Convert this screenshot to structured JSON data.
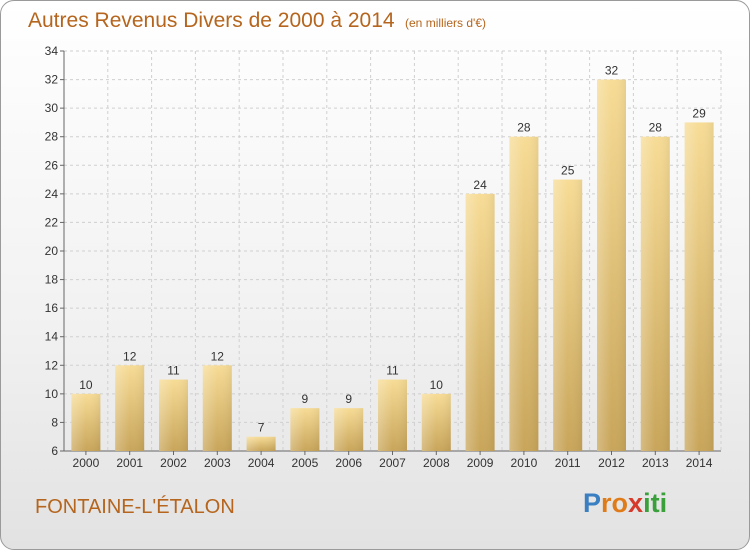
{
  "header": {
    "title": "Autres Revenus Divers de 2000 à 2014",
    "subtitle": "(en milliers d'€)"
  },
  "commune": "FONTAINE-L'ÉTALON",
  "logo": {
    "letters": [
      "P",
      "r",
      "o",
      "x",
      "i",
      "t",
      "i"
    ],
    "colors": [
      "#3a7fc1",
      "#e07b1a",
      "#e07b1a",
      "#d63a2a",
      "#3aa03a",
      "#3aa03a",
      "#3aa03a"
    ]
  },
  "colors": {
    "accent": "#b5651d",
    "bar_light": "#f7dc96",
    "bar_dark": "#c8a55a",
    "grid": "#d0d0d0"
  },
  "chart_data": {
    "type": "bar",
    "categories": [
      "2000",
      "2001",
      "2002",
      "2003",
      "2004",
      "2005",
      "2006",
      "2007",
      "2008",
      "2009",
      "2010",
      "2011",
      "2012",
      "2013",
      "2014"
    ],
    "values": [
      10,
      12,
      11,
      12,
      7,
      9,
      9,
      11,
      10,
      24,
      28,
      25,
      32,
      28,
      29
    ],
    "title": "Autres Revenus Divers de 2000 à 2014",
    "subtitle": "(en milliers d'€)",
    "ylim": [
      6,
      34
    ],
    "yticks": [
      6,
      8,
      10,
      12,
      14,
      16,
      18,
      20,
      22,
      24,
      26,
      28,
      30,
      32,
      34
    ],
    "grid": true,
    "data_labels": true
  }
}
